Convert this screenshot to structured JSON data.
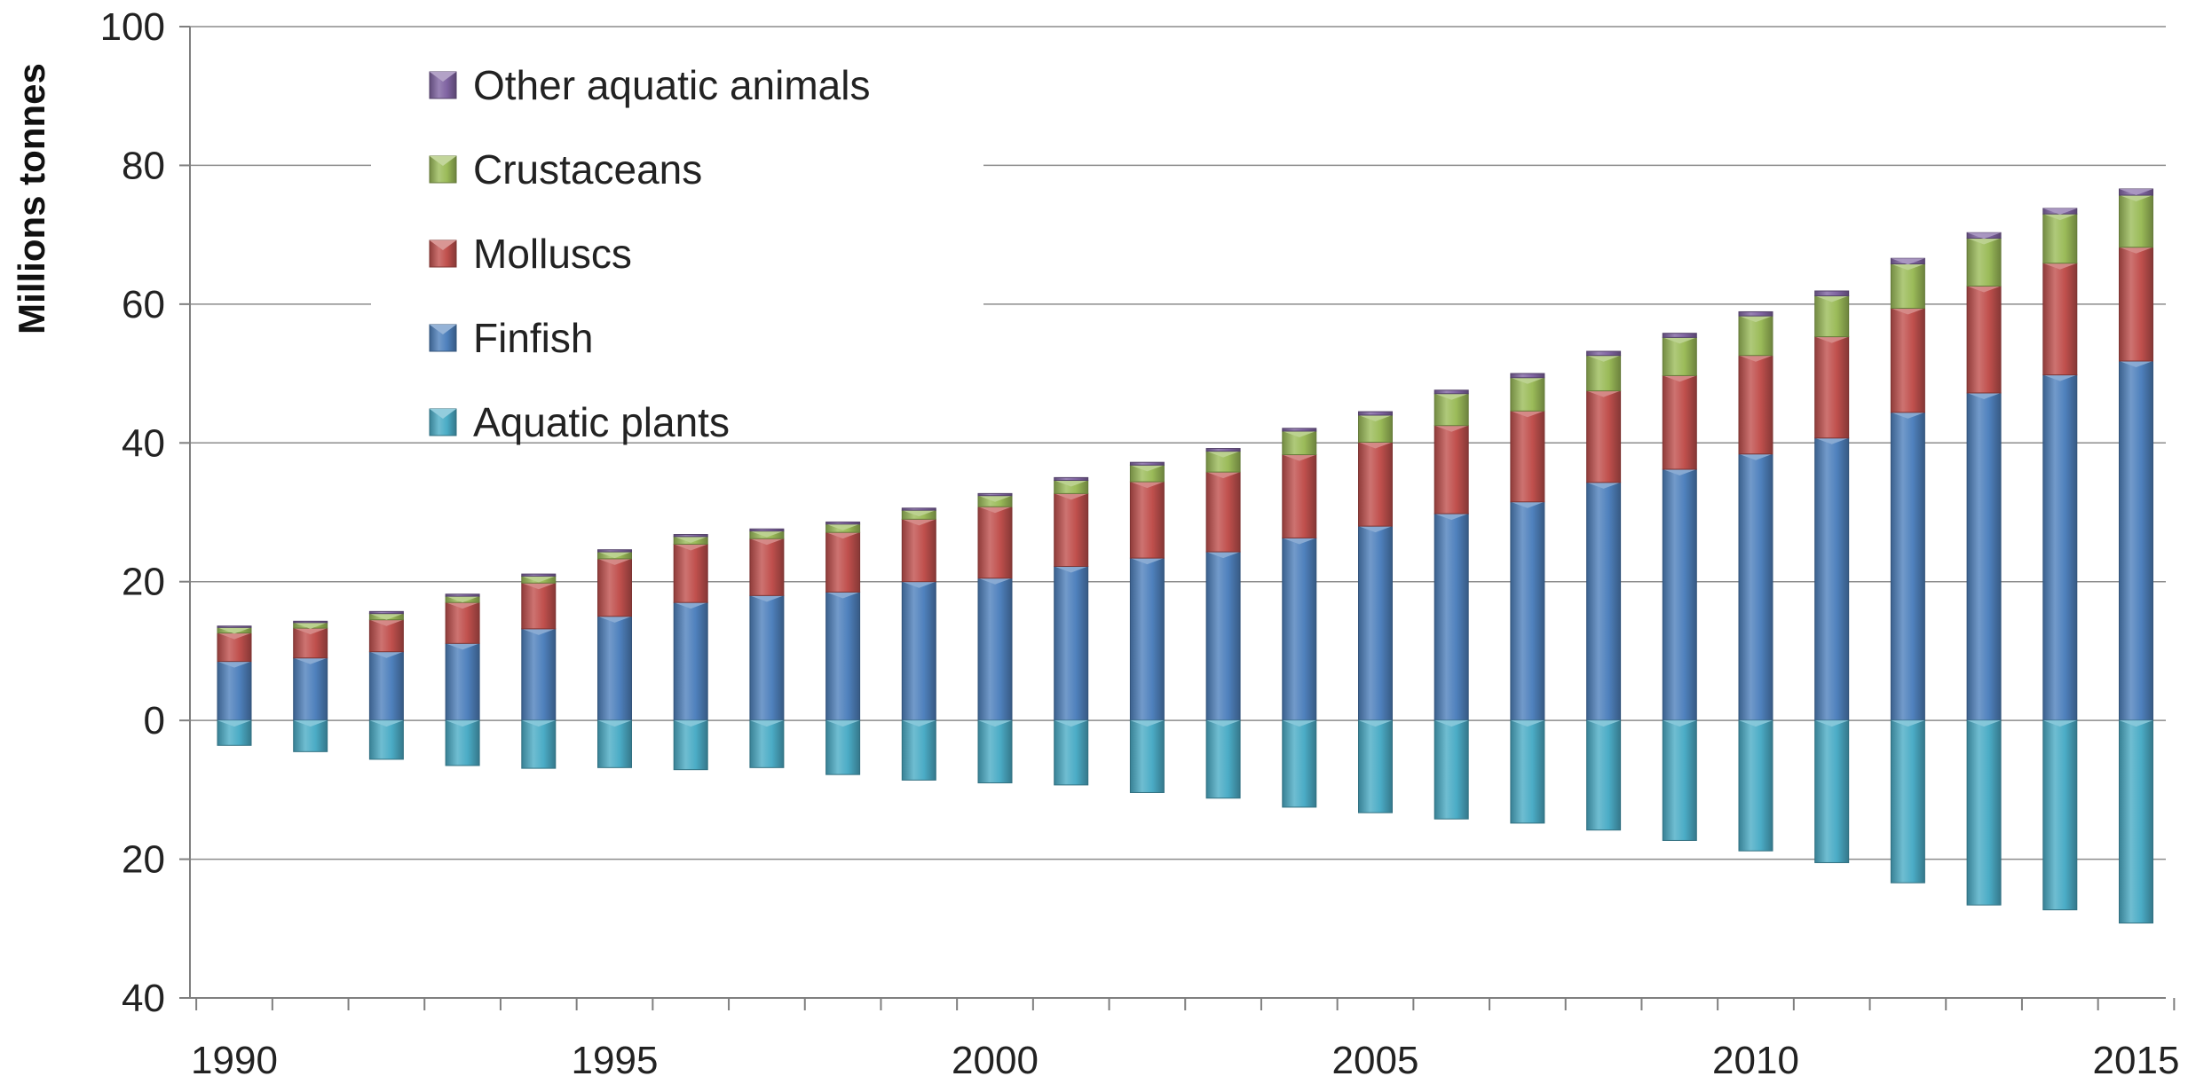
{
  "chart_data": {
    "type": "bar",
    "stacked": true,
    "ylabel": "Millions tonnes",
    "xlabel": "",
    "title": "",
    "ylim": [
      -40,
      100
    ],
    "y_ticks": [
      {
        "value": 100,
        "label": "100"
      },
      {
        "value": 80,
        "label": "80"
      },
      {
        "value": 60,
        "label": "60"
      },
      {
        "value": 40,
        "label": "40"
      },
      {
        "value": 20,
        "label": "20"
      },
      {
        "value": 0,
        "label": "0"
      },
      {
        "value": -20,
        "label": "20"
      },
      {
        "value": -40,
        "label": "40"
      }
    ],
    "x_tick_labels": [
      "1990",
      "1995",
      "2000",
      "2005",
      "2010",
      "2015"
    ],
    "grid": "horizontal",
    "legend_position": "top-left",
    "categories": [
      1990,
      1991,
      1992,
      1993,
      1994,
      1995,
      1996,
      1997,
      1998,
      1999,
      2000,
      2001,
      2002,
      2003,
      2004,
      2005,
      2006,
      2007,
      2008,
      2009,
      2010,
      2011,
      2012,
      2013,
      2014,
      2015
    ],
    "series": [
      {
        "name": "Other aquatic animals",
        "color": "#8064A2",
        "values": [
          0.2,
          0.2,
          0.3,
          0.3,
          0.3,
          0.3,
          0.3,
          0.3,
          0.3,
          0.3,
          0.3,
          0.4,
          0.4,
          0.4,
          0.4,
          0.5,
          0.5,
          0.6,
          0.6,
          0.6,
          0.6,
          0.7,
          0.8,
          0.8,
          0.8,
          0.9
        ]
      },
      {
        "name": "Crustaceans",
        "color": "#9BBB59",
        "values": [
          0.8,
          0.8,
          0.9,
          0.9,
          1.0,
          1.0,
          1.1,
          1.1,
          1.2,
          1.3,
          1.6,
          1.9,
          2.4,
          3.0,
          3.4,
          3.9,
          4.6,
          4.8,
          5.1,
          5.5,
          5.7,
          5.9,
          6.4,
          6.9,
          7.1,
          7.5
        ]
      },
      {
        "name": "Molluscs",
        "color": "#C0504D",
        "values": [
          4.1,
          4.3,
          4.6,
          5.9,
          6.6,
          8.3,
          8.4,
          8.2,
          8.6,
          9.0,
          10.3,
          10.5,
          11.0,
          11.5,
          12.0,
          12.1,
          12.7,
          13.1,
          13.2,
          13.5,
          14.2,
          14.6,
          15.0,
          15.4,
          16.1,
          16.4
        ]
      },
      {
        "name": "Finfish",
        "color": "#4F81BD",
        "values": [
          8.5,
          9.0,
          9.9,
          11.1,
          13.2,
          15.0,
          17.0,
          18.0,
          18.5,
          20.0,
          20.5,
          22.2,
          23.4,
          24.3,
          26.3,
          28.0,
          29.8,
          31.5,
          34.3,
          36.2,
          38.4,
          40.7,
          44.4,
          47.2,
          49.8,
          51.8
        ]
      },
      {
        "name": "Aquatic plants",
        "color": "#4BACC6",
        "values": [
          -3.6,
          -4.5,
          -5.6,
          -6.5,
          -6.9,
          -6.8,
          -7.1,
          -6.8,
          -7.8,
          -8.6,
          -9.0,
          -9.3,
          -10.4,
          -11.2,
          -12.5,
          -13.3,
          -14.2,
          -14.8,
          -15.8,
          -17.3,
          -18.8,
          -20.5,
          -23.4,
          -26.6,
          -27.3,
          -29.2
        ]
      }
    ]
  }
}
